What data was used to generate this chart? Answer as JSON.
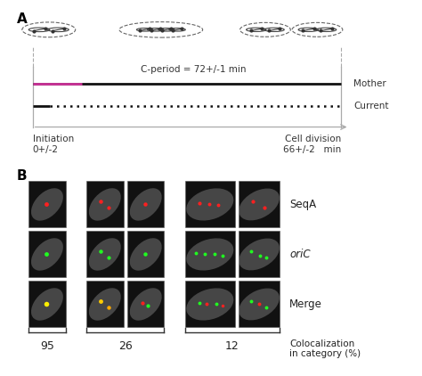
{
  "fig_width": 4.74,
  "fig_height": 4.22,
  "dpi": 100,
  "background_color": "#ffffff",
  "panel_A": {
    "label": "A",
    "c_period_label": "C-period = 72+/-1 min",
    "mother_label": "Mother",
    "current_label": "Current",
    "initiation_label": "Initiation\n0+/-2",
    "division_label": "Cell division\n66+/-2   min",
    "magenta_color": "#cc3399",
    "timeline_color": "#aaaaaa",
    "line_color": "#111111"
  },
  "panel_B": {
    "label": "B",
    "row_labels": [
      "SeqA",
      "oriC",
      "Merge"
    ],
    "row_label_italic": [
      false,
      true,
      false
    ],
    "colocalization_label": "Colocalization\nin category (%)"
  }
}
